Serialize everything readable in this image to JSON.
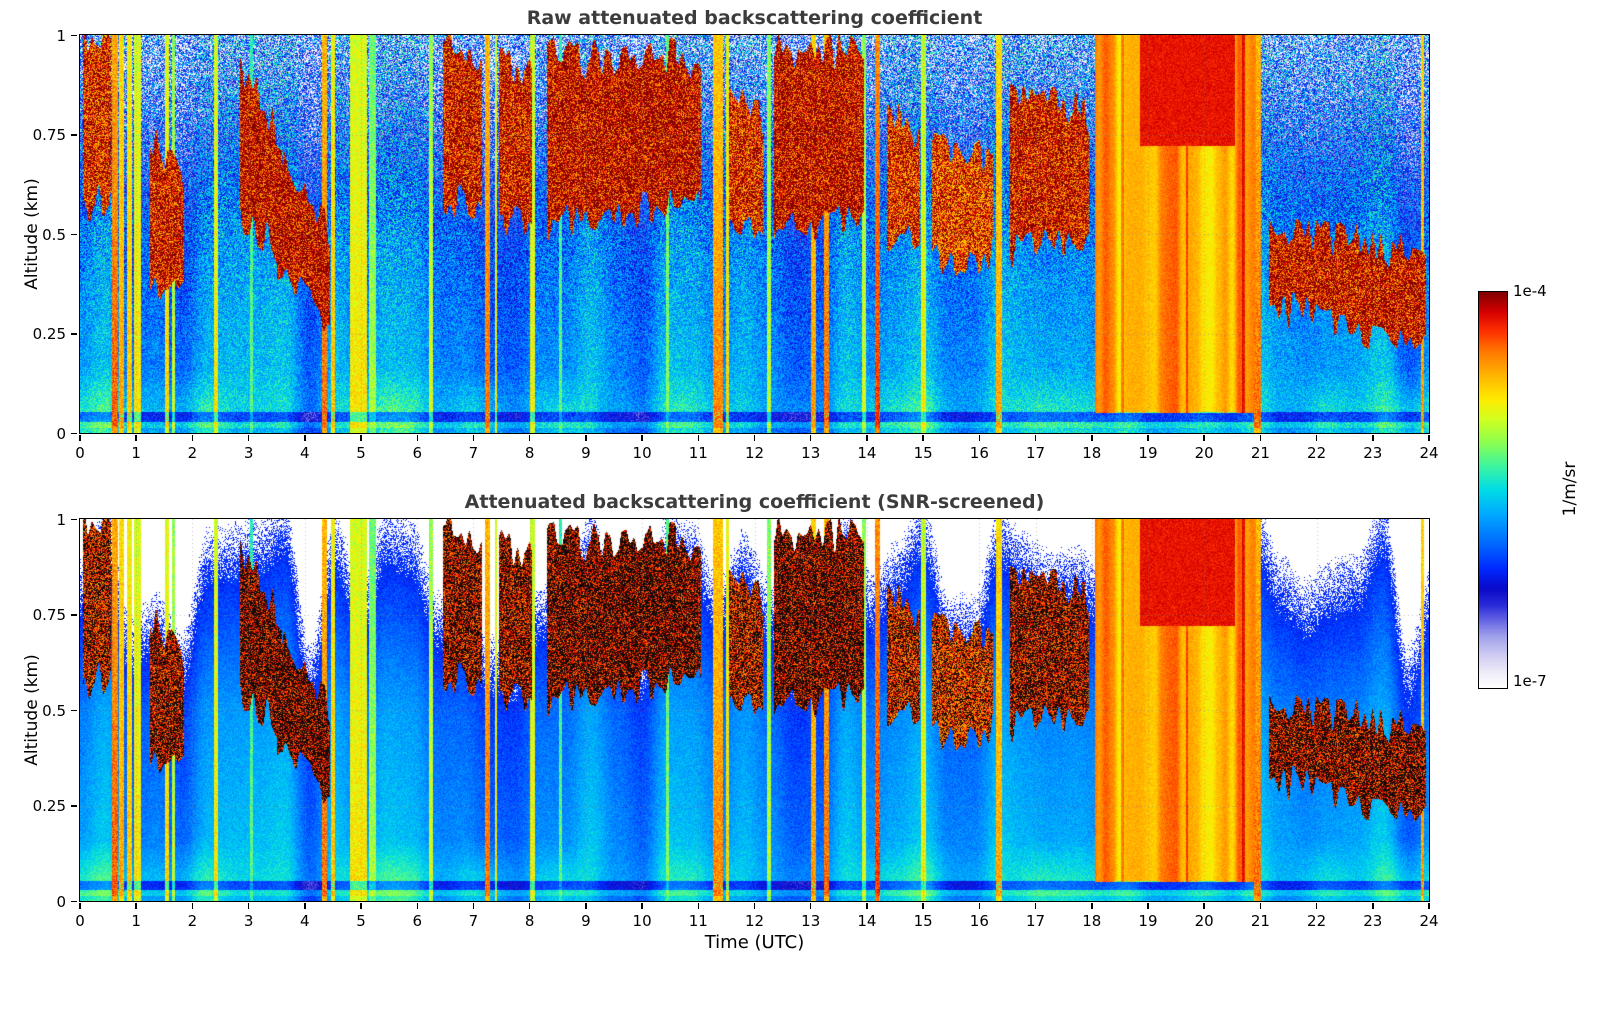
{
  "chart_data": {
    "type": "heatmap",
    "panels": [
      {
        "title": "Raw attenuated backscattering coefficient",
        "ylabel": "Altitude (km)",
        "screened": false
      },
      {
        "title": "Attenuated backscattering coefficient (SNR-screened)",
        "ylabel": "Altitude (km)",
        "screened": true
      }
    ],
    "x": {
      "label": "Time (UTC)",
      "range": [
        0,
        24
      ],
      "ticks": [
        {
          "v": 0,
          "label": "0"
        },
        {
          "v": 1,
          "label": "1"
        },
        {
          "v": 2,
          "label": "2"
        },
        {
          "v": 3,
          "label": "3"
        },
        {
          "v": 4,
          "label": "4"
        },
        {
          "v": 5,
          "label": "5"
        },
        {
          "v": 6,
          "label": "6"
        },
        {
          "v": 7,
          "label": "7"
        },
        {
          "v": 8,
          "label": "8"
        },
        {
          "v": 9,
          "label": "9"
        },
        {
          "v": 10,
          "label": "10"
        },
        {
          "v": 11,
          "label": "11"
        },
        {
          "v": 12,
          "label": "12"
        },
        {
          "v": 13,
          "label": "13"
        },
        {
          "v": 14,
          "label": "14"
        },
        {
          "v": 15,
          "label": "15"
        },
        {
          "v": 16,
          "label": "16"
        },
        {
          "v": 17,
          "label": "17"
        },
        {
          "v": 18,
          "label": "18"
        },
        {
          "v": 19,
          "label": "19"
        },
        {
          "v": 20,
          "label": "20"
        },
        {
          "v": 21,
          "label": "21"
        },
        {
          "v": 22,
          "label": "22"
        },
        {
          "v": 23,
          "label": "23"
        },
        {
          "v": 24,
          "label": "24"
        }
      ]
    },
    "y": {
      "range": [
        0,
        1
      ],
      "ticks": [
        {
          "v": 0,
          "label": "0"
        },
        {
          "v": 0.25,
          "label": "0.25"
        },
        {
          "v": 0.5,
          "label": "0.5"
        },
        {
          "v": 0.75,
          "label": "0.75"
        },
        {
          "v": 1,
          "label": "1"
        }
      ]
    },
    "colorbar": {
      "max": "1e-4",
      "min": "1e-7",
      "units": "1/m/sr",
      "scale": "log"
    },
    "colormap_stops": [
      [
        0.0,
        "#ffffff"
      ],
      [
        0.04,
        "#eeeaf8"
      ],
      [
        0.08,
        "#d0cdf2"
      ],
      [
        0.13,
        "#a0a0eb"
      ],
      [
        0.17,
        "#6464e4"
      ],
      [
        0.21,
        "#2828d8"
      ],
      [
        0.25,
        "#0a0ac8"
      ],
      [
        0.3,
        "#0028ff"
      ],
      [
        0.37,
        "#006eff"
      ],
      [
        0.44,
        "#00aaff"
      ],
      [
        0.5,
        "#00dce6"
      ],
      [
        0.56,
        "#3cf5a0"
      ],
      [
        0.62,
        "#8cff50"
      ],
      [
        0.68,
        "#d2ff1e"
      ],
      [
        0.73,
        "#ffeb00"
      ],
      [
        0.79,
        "#ffb400"
      ],
      [
        0.85,
        "#ff7800"
      ],
      [
        0.9,
        "#ff3200"
      ],
      [
        0.95,
        "#d70000"
      ],
      [
        1.0,
        "#800000"
      ]
    ],
    "features": {
      "precip_columns": [
        {
          "t": 0.62,
          "w": 0.1,
          "i": 0.92
        },
        {
          "t": 0.74,
          "w": 0.1,
          "i": 0.85
        },
        {
          "t": 0.88,
          "w": 0.08,
          "i": 0.82
        },
        {
          "t": 1.02,
          "w": 0.12,
          "i": 0.78
        },
        {
          "t": 1.55,
          "w": 0.07,
          "i": 0.8
        },
        {
          "t": 1.66,
          "w": 0.05,
          "i": 0.72
        },
        {
          "t": 2.42,
          "w": 0.07,
          "i": 0.78
        },
        {
          "t": 3.05,
          "w": 0.05,
          "i": 0.62
        },
        {
          "t": 4.35,
          "w": 0.1,
          "i": 0.9
        },
        {
          "t": 4.5,
          "w": 0.08,
          "i": 0.82
        },
        {
          "t": 4.95,
          "w": 0.3,
          "i": 0.78
        },
        {
          "t": 5.2,
          "w": 0.12,
          "i": 0.68
        },
        {
          "t": 6.25,
          "w": 0.07,
          "i": 0.72
        },
        {
          "t": 7.25,
          "w": 0.1,
          "i": 0.9
        },
        {
          "t": 7.4,
          "w": 0.05,
          "i": 0.78
        },
        {
          "t": 8.05,
          "w": 0.08,
          "i": 0.76
        },
        {
          "t": 8.55,
          "w": 0.05,
          "i": 0.62
        },
        {
          "t": 10.45,
          "w": 0.05,
          "i": 0.66
        },
        {
          "t": 11.35,
          "w": 0.18,
          "i": 0.88
        },
        {
          "t": 11.52,
          "w": 0.06,
          "i": 0.8
        },
        {
          "t": 12.25,
          "w": 0.07,
          "i": 0.7
        },
        {
          "t": 13.05,
          "w": 0.1,
          "i": 0.86
        },
        {
          "t": 13.28,
          "w": 0.1,
          "i": 0.9
        },
        {
          "t": 13.95,
          "w": 0.06,
          "i": 0.72
        },
        {
          "t": 14.18,
          "w": 0.09,
          "i": 0.95
        },
        {
          "t": 15.0,
          "w": 0.09,
          "i": 0.76
        },
        {
          "t": 16.35,
          "w": 0.09,
          "i": 0.85
        },
        {
          "t": 20.95,
          "w": 0.12,
          "i": 0.9
        },
        {
          "t": 23.88,
          "w": 0.05,
          "i": 0.86
        }
      ],
      "cloud_layers": [
        {
          "t0": 0.05,
          "t1": 0.55,
          "zb": [
            0.55,
            0.6
          ],
          "zt": [
            1.0,
            1.0
          ],
          "i": 0.93
        },
        {
          "t0": 1.25,
          "t1": 1.85,
          "zb": [
            0.35,
            0.4
          ],
          "zt": [
            0.75,
            0.65
          ],
          "i": 0.95
        },
        {
          "t0": 2.85,
          "t1": 3.6,
          "zb": [
            0.55,
            0.45
          ],
          "zt": [
            0.9,
            0.75
          ],
          "i": 0.97
        },
        {
          "t0": 3.5,
          "t1": 4.45,
          "zb": [
            0.42,
            0.27
          ],
          "zt": [
            0.72,
            0.5
          ],
          "i": 0.98
        },
        {
          "t0": 6.45,
          "t1": 7.15,
          "zb": [
            0.6,
            0.55
          ],
          "zt": [
            1.0,
            0.95
          ],
          "i": 0.95
        },
        {
          "t0": 7.45,
          "t1": 8.05,
          "zb": [
            0.55,
            0.5
          ],
          "zt": [
            0.95,
            0.9
          ],
          "i": 0.95
        },
        {
          "t0": 8.3,
          "t1": 11.05,
          "zb": [
            0.52,
            0.58
          ],
          "zt": [
            0.95,
            0.9
          ],
          "i": 0.97
        },
        {
          "t0": 9.0,
          "t1": 10.6,
          "zb": [
            0.6,
            0.6
          ],
          "zt": [
            0.95,
            0.95
          ],
          "i": 0.98
        },
        {
          "t0": 11.55,
          "t1": 12.15,
          "zb": [
            0.55,
            0.5
          ],
          "zt": [
            0.85,
            0.8
          ],
          "i": 0.93
        },
        {
          "t0": 12.35,
          "t1": 13.95,
          "zb": [
            0.5,
            0.55
          ],
          "zt": [
            0.97,
            0.95
          ],
          "i": 0.97
        },
        {
          "t0": 14.35,
          "t1": 14.95,
          "zb": [
            0.45,
            0.5
          ],
          "zt": [
            0.8,
            0.75
          ],
          "i": 0.92
        },
        {
          "t0": 15.15,
          "t1": 16.25,
          "zb": [
            0.42,
            0.45
          ],
          "zt": [
            0.72,
            0.68
          ],
          "i": 0.9
        },
        {
          "t0": 16.55,
          "t1": 17.95,
          "zb": [
            0.45,
            0.5
          ],
          "zt": [
            0.85,
            0.8
          ],
          "i": 0.95
        },
        {
          "t0": 21.15,
          "t1": 23.95,
          "zb": [
            0.33,
            0.2
          ],
          "zt": [
            0.52,
            0.45
          ],
          "i": 0.96
        }
      ],
      "heavy_precip_block": {
        "t0": 18.05,
        "t1": 20.92,
        "i": 0.78,
        "top": {
          "t0": 18.85,
          "t1": 20.55,
          "z": 0.72,
          "i": 0.93
        }
      },
      "surface_attenuation_line": {
        "z0": 0.028,
        "z1": 0.052
      }
    }
  }
}
